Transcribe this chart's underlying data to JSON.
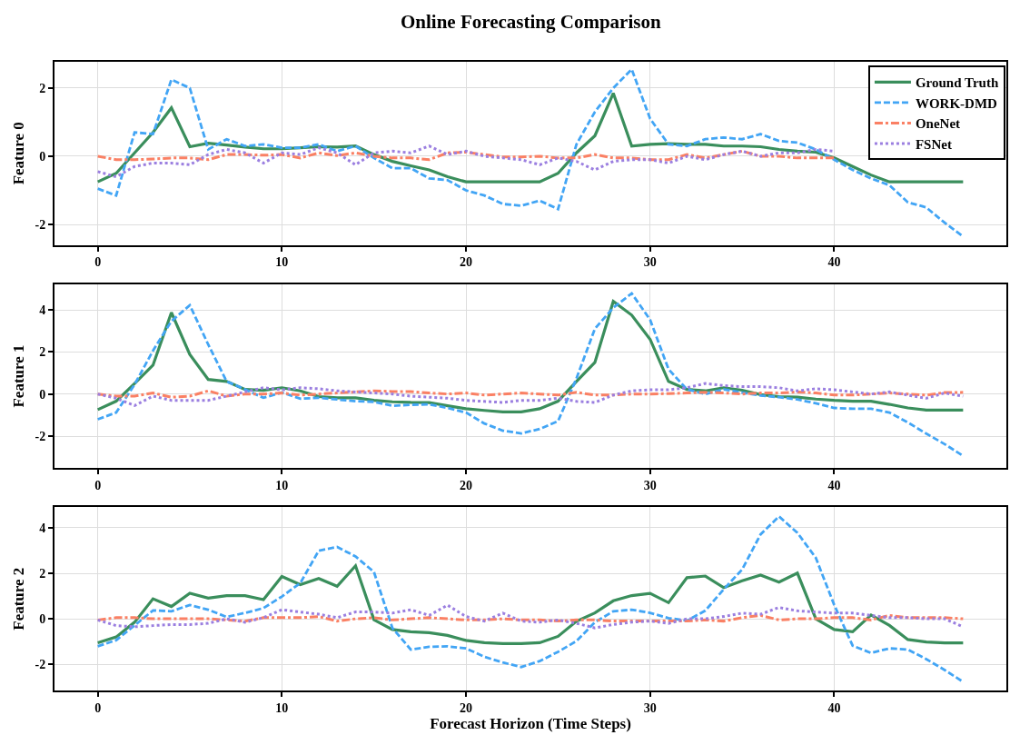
{
  "chart_data": [
    {
      "type": "line",
      "title": "Online Forecasting Comparison",
      "ylabel": "Feature 0",
      "legend": "top right",
      "grid": true,
      "x": [
        0,
        1,
        2,
        3,
        4,
        5,
        6,
        7,
        8,
        9,
        10,
        11,
        12,
        13,
        14,
        15,
        16,
        17,
        18,
        19,
        20,
        21,
        22,
        23,
        24,
        25,
        26,
        27,
        28,
        29,
        30,
        31,
        32,
        33,
        34,
        35,
        36,
        37,
        38,
        39,
        40,
        41,
        42,
        43,
        44,
        45,
        46,
        47
      ],
      "xlim": [
        -2.35,
        49.35
      ],
      "xticks": [
        0,
        10,
        20,
        30,
        40
      ],
      "ylim": [
        -2.6,
        2.77
      ],
      "yticks": [
        -2,
        0,
        2
      ],
      "series": [
        {
          "name": "Ground Truth",
          "color": "#3a8e5c",
          "line_style": "solid",
          "values": [
            -0.75,
            -0.5,
            0.1,
            0.7,
            1.42,
            0.28,
            0.38,
            0.33,
            0.27,
            0.22,
            0.22,
            0.25,
            0.28,
            0.27,
            0.3,
            0.05,
            -0.15,
            -0.28,
            -0.4,
            -0.6,
            -0.75,
            -0.75,
            -0.75,
            -0.75,
            -0.75,
            -0.5,
            0.1,
            0.6,
            1.85,
            0.3,
            0.35,
            0.37,
            0.35,
            0.35,
            0.3,
            0.3,
            0.28,
            0.2,
            0.15,
            0.12,
            -0.05,
            -0.3,
            -0.55,
            -0.75,
            -0.75,
            -0.75,
            -0.75,
            -0.75
          ]
        },
        {
          "name": "WORK-DMD",
          "color": "#42a5f5",
          "line_style": "dashed",
          "values": [
            -0.95,
            -1.15,
            0.7,
            0.65,
            2.25,
            2.0,
            0.2,
            0.5,
            0.3,
            0.35,
            0.25,
            0.25,
            0.35,
            0.15,
            0.3,
            -0.05,
            -0.35,
            -0.35,
            -0.65,
            -0.7,
            -1.0,
            -1.15,
            -1.4,
            -1.45,
            -1.3,
            -1.55,
            0.35,
            1.3,
            2.0,
            2.55,
            1.1,
            0.35,
            0.3,
            0.5,
            0.55,
            0.5,
            0.65,
            0.45,
            0.4,
            0.2,
            -0.1,
            -0.4,
            -0.65,
            -0.85,
            -1.35,
            -1.5,
            -1.95,
            -2.35
          ]
        },
        {
          "name": "OneNet",
          "color": "#fa8064",
          "line_style": "dashdot",
          "values": [
            0.0,
            -0.1,
            -0.1,
            -0.08,
            -0.05,
            -0.05,
            -0.1,
            0.05,
            0.05,
            0.03,
            0.05,
            -0.05,
            0.1,
            0.02,
            0.1,
            0.0,
            -0.05,
            -0.05,
            -0.1,
            0.1,
            0.12,
            0.05,
            -0.02,
            -0.02,
            0.0,
            -0.05,
            -0.05,
            0.05,
            -0.05,
            -0.05,
            -0.1,
            -0.1,
            0.05,
            -0.05,
            0.05,
            0.15,
            0.0,
            0.0,
            -0.05,
            -0.05,
            -0.05,
            null,
            null,
            null,
            null,
            null,
            null,
            null
          ]
        },
        {
          "name": "FSNet",
          "color": "#9b7fe0",
          "line_style": "dotted",
          "values": [
            -0.45,
            -0.6,
            -0.3,
            -0.2,
            -0.2,
            -0.25,
            0.05,
            0.2,
            0.1,
            -0.2,
            0.1,
            0.05,
            0.25,
            0.1,
            -0.25,
            0.1,
            0.15,
            0.1,
            0.3,
            0.05,
            0.15,
            0.0,
            -0.05,
            -0.1,
            -0.25,
            -0.05,
            -0.15,
            -0.4,
            -0.15,
            -0.1,
            -0.1,
            -0.2,
            0.0,
            -0.1,
            0.05,
            0.15,
            0.0,
            0.1,
            0.1,
            0.2,
            0.15,
            null,
            null,
            null,
            null,
            null,
            null,
            null
          ]
        }
      ]
    },
    {
      "type": "line",
      "ylabel": "Feature 1",
      "grid": true,
      "x": [
        0,
        1,
        2,
        3,
        4,
        5,
        6,
        7,
        8,
        9,
        10,
        11,
        12,
        13,
        14,
        15,
        16,
        17,
        18,
        19,
        20,
        21,
        22,
        23,
        24,
        25,
        26,
        27,
        28,
        29,
        30,
        31,
        32,
        33,
        34,
        35,
        36,
        37,
        38,
        39,
        40,
        41,
        42,
        43,
        44,
        45,
        46,
        47
      ],
      "xlim": [
        -2.35,
        49.35
      ],
      "xticks": [
        0,
        10,
        20,
        30,
        40
      ],
      "ylim": [
        -3.5,
        5.2
      ],
      "yticks": [
        -2,
        0,
        2,
        4
      ],
      "series": [
        {
          "color": "#3a8e5c",
          "line_style": "solid",
          "values": [
            -0.74,
            -0.34,
            0.5,
            1.37,
            3.87,
            1.88,
            0.69,
            0.6,
            0.22,
            0.18,
            0.3,
            0.15,
            -0.12,
            -0.18,
            -0.18,
            -0.3,
            -0.37,
            -0.4,
            -0.41,
            -0.56,
            -0.7,
            -0.78,
            -0.85,
            -0.85,
            -0.7,
            -0.34,
            0.6,
            1.5,
            4.4,
            3.75,
            2.6,
            0.6,
            0.22,
            0.15,
            0.3,
            0.18,
            -0.03,
            -0.12,
            -0.15,
            -0.24,
            -0.3,
            -0.34,
            -0.34,
            -0.49,
            -0.66,
            -0.76,
            -0.76,
            -0.76
          ]
        },
        {
          "color": "#42a5f5",
          "line_style": "dashed",
          "values": [
            -1.2,
            -0.88,
            0.45,
            2.06,
            3.46,
            4.22,
            2.35,
            0.6,
            0.22,
            -0.18,
            0.07,
            -0.22,
            -0.18,
            -0.26,
            -0.34,
            -0.37,
            -0.56,
            -0.51,
            -0.49,
            -0.66,
            -0.88,
            -1.4,
            -1.74,
            -1.87,
            -1.66,
            -1.29,
            0.74,
            3.1,
            4.1,
            4.78,
            3.53,
            1.18,
            0.22,
            0.0,
            0.22,
            0.07,
            -0.07,
            -0.15,
            -0.26,
            -0.44,
            -0.66,
            -0.7,
            -0.7,
            -0.88,
            -1.35,
            -1.88,
            -2.38,
            -2.94
          ]
        },
        {
          "color": "#fa8064",
          "line_style": "dashdot",
          "values": [
            0.0,
            -0.1,
            -0.1,
            0.05,
            -0.15,
            -0.1,
            0.15,
            -0.1,
            0.0,
            0.0,
            0.05,
            -0.05,
            0.0,
            0.05,
            0.1,
            0.15,
            0.12,
            0.12,
            0.05,
            0.0,
            0.05,
            -0.05,
            0.0,
            0.05,
            0.0,
            -0.05,
            0.08,
            -0.05,
            -0.05,
            0.0,
            0.0,
            0.02,
            0.05,
            0.08,
            0.05,
            0.0,
            0.05,
            0.05,
            0.1,
            0.05,
            -0.05,
            -0.05,
            0.0,
            0.05,
            0.0,
            -0.05,
            0.07,
            0.08
          ]
        },
        {
          "color": "#9b7fe0",
          "line_style": "dotted",
          "values": [
            0.0,
            -0.2,
            -0.55,
            -0.1,
            -0.3,
            -0.3,
            -0.3,
            -0.1,
            0.1,
            0.3,
            0.2,
            0.3,
            0.25,
            0.15,
            0.1,
            0.05,
            0.0,
            -0.1,
            -0.15,
            -0.2,
            -0.3,
            -0.35,
            -0.4,
            -0.3,
            -0.3,
            -0.2,
            -0.35,
            -0.4,
            -0.05,
            0.15,
            0.2,
            0.2,
            0.3,
            0.5,
            0.4,
            0.35,
            0.35,
            0.3,
            0.15,
            0.25,
            0.2,
            0.1,
            0.0,
            0.1,
            -0.05,
            -0.2,
            0.05,
            -0.1
          ]
        }
      ]
    },
    {
      "type": "line",
      "ylabel": "Feature 2",
      "xlabel": "Forecast Horizon (Time Steps)",
      "grid": true,
      "x": [
        0,
        1,
        2,
        3,
        4,
        5,
        6,
        7,
        8,
        9,
        10,
        11,
        12,
        13,
        14,
        15,
        16,
        17,
        18,
        19,
        20,
        21,
        22,
        23,
        24,
        25,
        26,
        27,
        28,
        29,
        30,
        31,
        32,
        33,
        34,
        35,
        36,
        37,
        38,
        39,
        40,
        41,
        42,
        43,
        44,
        45,
        46,
        47
      ],
      "xlim": [
        -2.35,
        49.35
      ],
      "xticks": [
        0,
        10,
        20,
        30,
        40
      ],
      "ylim": [
        -3.15,
        4.9
      ],
      "yticks": [
        -2,
        0,
        2,
        4
      ],
      "series": [
        {
          "color": "#3a8e5c",
          "line_style": "solid",
          "values": [
            -1.05,
            -0.8,
            -0.15,
            0.88,
            0.54,
            1.12,
            0.91,
            1.02,
            1.02,
            0.84,
            1.86,
            1.5,
            1.77,
            1.43,
            2.33,
            -0.04,
            -0.47,
            -0.57,
            -0.61,
            -0.73,
            -0.95,
            -1.05,
            -1.09,
            -1.09,
            -1.05,
            -0.77,
            -0.11,
            0.26,
            0.79,
            1.02,
            1.12,
            0.71,
            1.81,
            1.88,
            1.37,
            1.67,
            1.92,
            1.61,
            2.01,
            0.0,
            -0.47,
            -0.57,
            0.17,
            -0.29,
            -0.91,
            -1.02,
            -1.06,
            -1.06
          ]
        },
        {
          "color": "#42a5f5",
          "line_style": "dashed",
          "values": [
            -1.21,
            -0.94,
            -0.29,
            0.37,
            0.33,
            0.61,
            0.4,
            0.08,
            0.26,
            0.47,
            0.98,
            1.57,
            2.99,
            3.16,
            2.74,
            2.06,
            -0.4,
            -1.35,
            -1.23,
            -1.21,
            -1.3,
            -1.67,
            -1.92,
            -2.12,
            -1.86,
            -1.45,
            -0.98,
            -0.15,
            0.33,
            0.4,
            0.26,
            0.03,
            -0.08,
            0.36,
            1.3,
            2.17,
            3.71,
            4.5,
            3.78,
            2.68,
            0.61,
            -1.18,
            -1.5,
            -1.3,
            -1.35,
            -1.77,
            -2.25,
            -2.77
          ]
        },
        {
          "color": "#fa8064",
          "line_style": "dashdot",
          "values": [
            -0.05,
            0.05,
            0.05,
            0.0,
            0.0,
            0.0,
            0.0,
            -0.05,
            -0.1,
            0.05,
            0.05,
            0.05,
            0.1,
            -0.1,
            0.0,
            0.05,
            -0.05,
            0.0,
            0.05,
            0.0,
            -0.05,
            -0.05,
            0.0,
            -0.05,
            -0.05,
            -0.1,
            -0.05,
            -0.05,
            -0.1,
            -0.1,
            -0.1,
            -0.1,
            -0.1,
            -0.05,
            -0.1,
            0.05,
            0.15,
            -0.05,
            0.0,
            0.0,
            0.05,
            0.05,
            -0.05,
            0.15,
            0.05,
            0.05,
            0.05,
            0.0
          ]
        },
        {
          "color": "#9b7fe0",
          "line_style": "dotted",
          "values": [
            -0.05,
            -0.3,
            -0.35,
            -0.3,
            -0.25,
            -0.25,
            -0.2,
            0.0,
            -0.15,
            0.05,
            0.4,
            0.3,
            0.2,
            0.05,
            0.3,
            0.3,
            0.25,
            0.4,
            0.15,
            0.6,
            0.1,
            -0.1,
            0.25,
            -0.1,
            -0.15,
            -0.05,
            -0.2,
            -0.4,
            -0.25,
            -0.15,
            -0.1,
            -0.2,
            0.0,
            0.0,
            0.1,
            0.25,
            0.2,
            0.5,
            0.35,
            0.3,
            0.25,
            0.25,
            0.15,
            0.05,
            0.05,
            0.0,
            0.0,
            -0.35
          ]
        }
      ]
    }
  ]
}
